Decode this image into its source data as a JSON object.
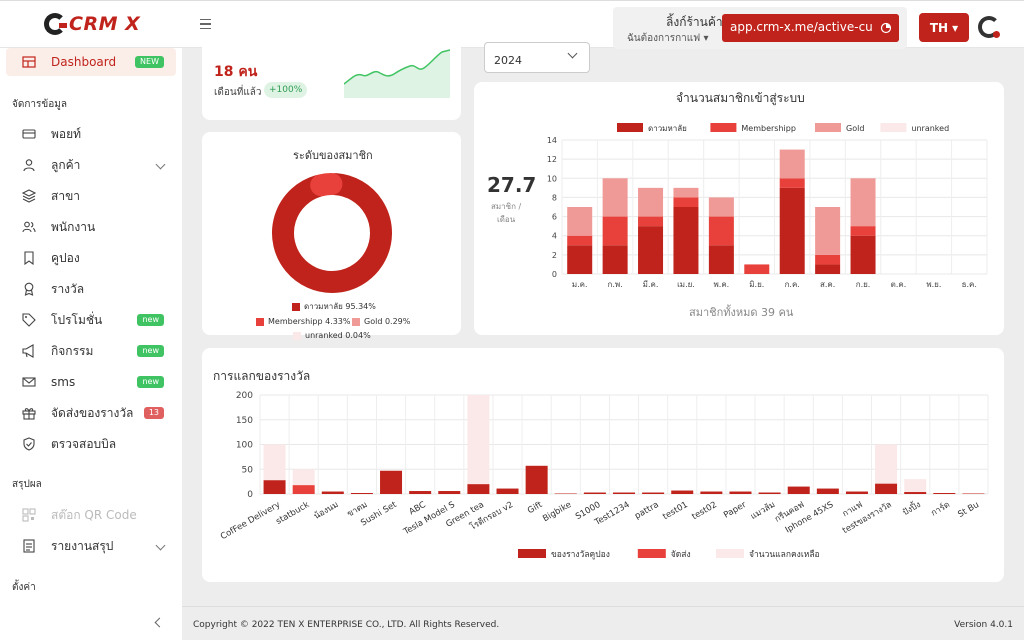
{
  "header": {
    "brand": "CRM X",
    "store_title": "ลิ้งก์ร้านค้า",
    "store_select": "ฉันต้องการกาแฟ",
    "store_link": "app.crm-x.me/active-cust",
    "language": "TH",
    "icons": {
      "menu": "hamburger-icon",
      "copy": "copy-icon"
    }
  },
  "sidebar": {
    "dashboard": {
      "label": "Dashboard",
      "badge": "NEW"
    },
    "section_data": "จัดการข้อมูล",
    "items": [
      {
        "label": "พอยท์",
        "icon": "card-icon"
      },
      {
        "label": "ลูกค้า",
        "icon": "user-icon",
        "expandable": true
      },
      {
        "label": "สาขา",
        "icon": "layers-icon"
      },
      {
        "label": "พนักงาน",
        "icon": "users-icon"
      },
      {
        "label": "คูปอง",
        "icon": "bookmark-icon"
      },
      {
        "label": "รางวัล",
        "icon": "award-icon"
      },
      {
        "label": "โปรโมชั่น",
        "icon": "tag-icon",
        "badge": "new"
      },
      {
        "label": "กิจกรรม",
        "icon": "megaphone-icon",
        "badge": "new"
      },
      {
        "label": "sms",
        "icon": "mail-icon",
        "badge": "new"
      },
      {
        "label": "จัดส่งของรางวัล",
        "icon": "gift-icon",
        "badge": "13"
      },
      {
        "label": "ตรวจสอบบิล",
        "icon": "shield-icon"
      }
    ],
    "section_summary": "สรุปผล",
    "summary_items": [
      {
        "label": "สต๊อก QR Code",
        "icon": "qr-icon",
        "disabled": true
      },
      {
        "label": "รายงานสรุป",
        "icon": "report-icon",
        "expandable": true
      }
    ],
    "section_settings": "ตั้งค่า"
  },
  "stats": {
    "value": "18 คน",
    "caption": "เดือนที่แล้ว",
    "change": "+100%"
  },
  "year_select": "2024",
  "membership_pie": {
    "title": "ระดับของสมาชิก",
    "legend": [
      "ดาวมหาลัย 95.34%",
      "Membershipp 4.33%",
      "Gold 0.29%",
      "unranked 0.04%"
    ],
    "colors": [
      "#c0231b",
      "#e8413b",
      "#f09a97",
      "#fbe9e9"
    ]
  },
  "member_chart": {
    "title": "จำนวนสมาชิกเข้าสู่ระบบ",
    "avg_value": "27.7",
    "avg_label_1": "สมาชิก /",
    "avg_label_2": "เดือน",
    "total": "สมาชิกทั้งหมด 39 คน"
  },
  "reward_chart_meta": {
    "title": "การแลกของรางวัล"
  },
  "footer": {
    "copyright": "Copyright © 2022 TEN X ENTERPRISE CO., LTD. All Rights Reserved.",
    "version": "Version 4.0.1"
  },
  "chart_data": [
    {
      "type": "pie",
      "title": "ระดับของสมาชิก",
      "categories": [
        "ดาวมหาลัย",
        "Membershipp",
        "Gold",
        "unranked"
      ],
      "values": [
        95.34,
        4.33,
        0.29,
        0.04
      ]
    },
    {
      "type": "bar",
      "title": "จำนวนสมาชิกเข้าสู่ระบบ",
      "stacked": true,
      "categories": [
        "ม.ค.",
        "ก.พ.",
        "มี.ค.",
        "เม.ย.",
        "พ.ค.",
        "มิ.ย.",
        "ก.ค.",
        "ส.ค.",
        "ก.ย.",
        "ต.ค.",
        "พ.ย.",
        "ธ.ค."
      ],
      "series": [
        {
          "name": "ดาวมหาลัย",
          "values": [
            3,
            3,
            5,
            7,
            3,
            0,
            9,
            1,
            4,
            0,
            0,
            0
          ]
        },
        {
          "name": "Membershipp",
          "values": [
            1,
            3,
            1,
            1,
            3,
            1,
            1,
            1,
            1,
            0,
            0,
            0
          ]
        },
        {
          "name": "Gold",
          "values": [
            3,
            4,
            3,
            1,
            2,
            0,
            3,
            5,
            5,
            0,
            0,
            0
          ]
        },
        {
          "name": "unranked",
          "values": [
            0,
            0,
            0,
            0,
            0,
            0,
            0,
            0,
            0,
            0,
            0,
            0
          ]
        }
      ],
      "ylim": [
        0,
        14
      ],
      "yticks": [
        0,
        2,
        4,
        6,
        8,
        10,
        12,
        14
      ],
      "legend": "top",
      "grid": true
    },
    {
      "type": "bar",
      "title": "การแลกของรางวัล",
      "categories": [
        "CofFee Delivery",
        "statbuck",
        "น้องนม",
        "ขาตม",
        "Sushi Set",
        "ABC",
        "Tesla Model S",
        "Green tea",
        "โรตีกรอบ v2",
        "Gift",
        "Bigbike",
        "S1000",
        "Test1234",
        "pattra",
        "test01",
        "test02",
        "Paper",
        "แมวส้ม",
        "กรีนคอฟ",
        "Iphone 45XS",
        "กาแฟ",
        "testของรางวัล",
        "ปังปิ้ง",
        "การ์ด",
        "St Bu"
      ],
      "series": [
        {
          "name": "ของรางวัลคูปอง",
          "values": [
            28,
            0,
            5,
            2,
            47,
            6,
            6,
            20,
            11,
            57,
            1,
            3,
            3,
            3,
            7,
            5,
            5,
            3,
            15,
            11,
            5,
            21,
            4,
            2,
            1
          ]
        },
        {
          "name": "จัดส่ง",
          "values": [
            0,
            18,
            0,
            0,
            0,
            0,
            0,
            0,
            0,
            0,
            0,
            0,
            0,
            0,
            0,
            0,
            0,
            0,
            0,
            0,
            0,
            0,
            0,
            0,
            0
          ]
        },
        {
          "name": "จำนวนแลกคงเหลือ",
          "values": [
            72,
            32,
            0,
            0,
            0,
            0,
            0,
            180,
            0,
            0,
            0,
            0,
            0,
            0,
            0,
            0,
            0,
            0,
            0,
            0,
            0,
            79,
            26,
            0,
            0
          ]
        }
      ],
      "ylim": [
        0,
        200
      ],
      "yticks": [
        0,
        50,
        100,
        150,
        200
      ],
      "legend": "bottom",
      "grid": true
    }
  ]
}
